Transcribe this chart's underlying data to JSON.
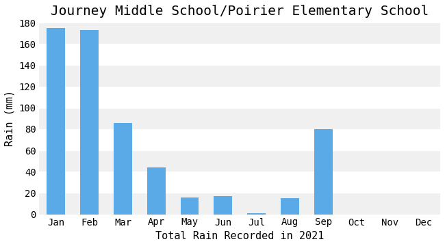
{
  "title": "Journey Middle School/Poirier Elementary School",
  "xlabel": "Total Rain Recorded in 2021",
  "ylabel": "Rain (mm)",
  "categories": [
    "Jan",
    "Feb",
    "Mar",
    "Apr",
    "May",
    "Jun",
    "Jul",
    "Aug",
    "Sep",
    "Oct",
    "Nov",
    "Dec"
  ],
  "values": [
    175,
    173,
    86,
    44,
    16,
    17,
    1,
    15,
    80,
    0,
    0,
    0
  ],
  "bar_color": "#5aaae7",
  "background_color": "#ffffff",
  "plot_bg_color": "#ffffff",
  "band_color_light": "#f0f0f0",
  "band_color_white": "#ffffff",
  "ylim": [
    0,
    180
  ],
  "yticks": [
    0,
    20,
    40,
    60,
    80,
    100,
    120,
    140,
    160,
    180
  ],
  "title_fontsize": 14,
  "label_fontsize": 11,
  "tick_fontsize": 10,
  "bar_width": 0.55
}
